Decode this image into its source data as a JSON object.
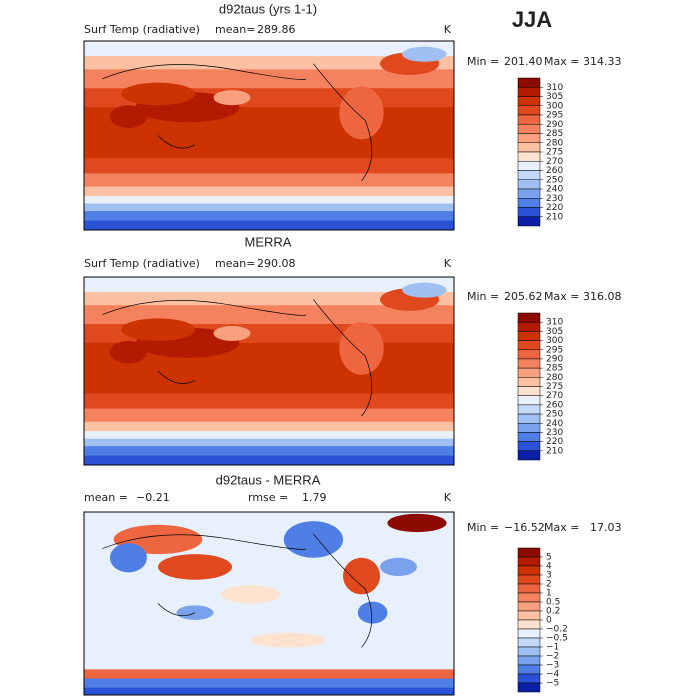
{
  "season": "JJA",
  "panels": [
    {
      "title": "d92taus (yrs 1-1)",
      "variable": "Surf Temp (radiative)",
      "stat1_label": "mean=",
      "stat1": "289.86",
      "units": "K",
      "min_label": "Min =",
      "min": "201.40",
      "max_label": "Max =",
      "max": "314.33",
      "colorbar": {
        "ticks": [
          310,
          305,
          300,
          295,
          290,
          285,
          280,
          275,
          270,
          260,
          250,
          240,
          230,
          220,
          210
        ],
        "colors": [
          "#8c0a00",
          "#b31b00",
          "#cc3300",
          "#e0481e",
          "#ee6640",
          "#f5825e",
          "#f9a07e",
          "#fcc0a2",
          "#fde2cf",
          "#e8f0fc",
          "#c4d8f8",
          "#a0bff2",
          "#7aa2ec",
          "#4f7ee4",
          "#2a52d6",
          "#0a1fa8"
        ]
      }
    },
    {
      "title": "MERRA",
      "variable": "Surf Temp (radiative)",
      "stat1_label": "mean=",
      "stat1": "290.08",
      "units": "K",
      "min_label": "Min =",
      "min": "205.62",
      "max_label": "Max =",
      "max": "316.08",
      "colorbar": {
        "ticks": [
          310,
          305,
          300,
          295,
          290,
          285,
          280,
          275,
          270,
          260,
          250,
          240,
          230,
          220,
          210
        ],
        "colors": [
          "#8c0a00",
          "#b31b00",
          "#cc3300",
          "#e0481e",
          "#ee6640",
          "#f5825e",
          "#f9a07e",
          "#fcc0a2",
          "#fde2cf",
          "#e8f0fc",
          "#c4d8f8",
          "#a0bff2",
          "#7aa2ec",
          "#4f7ee4",
          "#2a52d6",
          "#0a1fa8"
        ]
      }
    },
    {
      "title": "d92taus - MERRA",
      "stat1_label": "mean =",
      "stat1": "−0.21",
      "stat2_label": "rmse =",
      "stat2": "1.79",
      "units": "K",
      "min_label": "Min =",
      "min": "−16.52",
      "max_label": "Max =",
      "max": "17.03",
      "colorbar": {
        "ticks": [
          5,
          4,
          3,
          2,
          1,
          0.5,
          0.2,
          0,
          {
            "value": -0.2,
            "label": "−0.2"
          },
          {
            "value": -0.5,
            "label": "−0.5"
          },
          {
            "value": -1,
            "label": "−1"
          },
          {
            "value": -2,
            "label": "−2"
          },
          {
            "value": -3,
            "label": "−3"
          },
          {
            "value": -4,
            "label": "−4"
          },
          {
            "value": -5,
            "label": "−5"
          }
        ],
        "colors": [
          "#8c0a00",
          "#b31b00",
          "#cc3300",
          "#e0481e",
          "#ee6640",
          "#f5825e",
          "#f9a07e",
          "#fcc0a2",
          "#fde2cf",
          "#e8f0fc",
          "#c4d8f8",
          "#a0bff2",
          "#7aa2ec",
          "#4f7ee4",
          "#2a52d6",
          "#0a1fa8"
        ]
      }
    }
  ]
}
